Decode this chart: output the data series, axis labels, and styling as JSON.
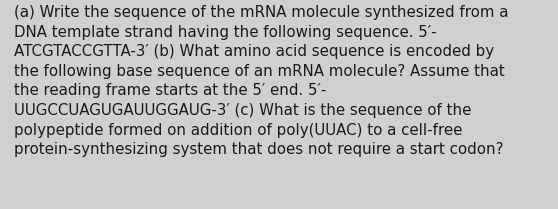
{
  "background_color": "#d0d0d0",
  "text_color": "#1a1a1a",
  "lines": [
    "(a) Write the sequence of the mRNA molecule synthesized from a",
    "DNA template strand having the following sequence. 5′-",
    "ATCGTACCGTTA-3′ (b) What amino acid sequence is encoded by",
    "the following base sequence of an mRNA molecule? Assume that",
    "the reading frame starts at the 5′ end. 5′-",
    "UUGCCUAGUGAUUGGAUG-3′ (c) What is the sequence of the",
    "polypeptide formed on addition of poly(UUAC) to a cell-free",
    "protein-synthesizing system that does not require a start codon?"
  ],
  "fontsize": 10.8,
  "figwidth": 5.58,
  "figheight": 2.09,
  "dpi": 100
}
